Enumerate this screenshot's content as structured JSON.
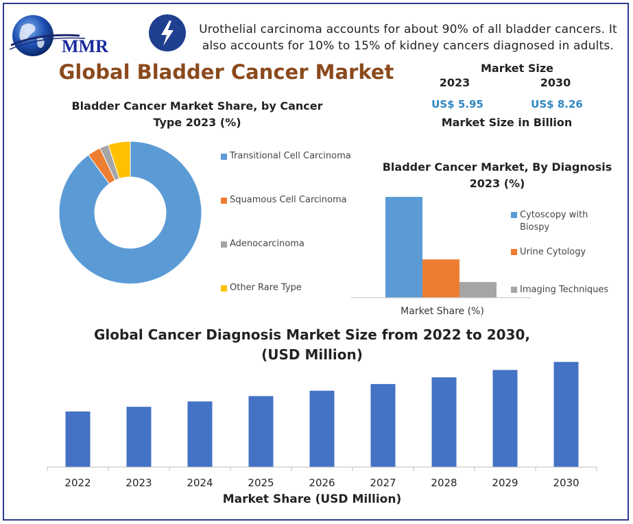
{
  "logo": {
    "text": "MMR"
  },
  "header": {
    "bolt_icon": "lightning-bolt-icon",
    "statement": "Urothelial carcinoma accounts for about 90% of all bladder cancers. It also accounts for 10% to 15% of kidney cancers diagnosed in adults."
  },
  "title": "Global Bladder Cancer Market",
  "market_size": {
    "title": "Market Size",
    "year_a": "2023",
    "year_b": "2030",
    "value_a": "US$ 5.95",
    "value_b": "US$ 8.26",
    "subtitle": "Market Size in Billion"
  },
  "colors": {
    "blue": "#5b9bd5",
    "orange": "#ed7d31",
    "gray": "#a5a5a5",
    "yellow": "#ffc000",
    "dark_blue": "#4472c4",
    "brown": "#8b4a1c"
  },
  "chart_data": [
    {
      "type": "pie",
      "title": "Bladder Cancer Market Share, by Cancer Type 2023 (%)",
      "categories": [
        "Transitional Cell Carcinoma",
        "Squamous Cell Carcinoma",
        "Adenocarcinoma",
        "Other Rare Type"
      ],
      "values": [
        90,
        3,
        2,
        5
      ],
      "colors": [
        "#5b9bd5",
        "#ed7d31",
        "#a5a5a5",
        "#ffc000"
      ],
      "donut": true,
      "legend": "right"
    },
    {
      "type": "bar",
      "title": "Bladder Cancer Market, By Diagnosis 2023 (%)",
      "xlabel": "Market Share (%)",
      "series": [
        {
          "name": "Cytoscopy with Biospy",
          "values": [
            58
          ]
        },
        {
          "name": "Urine Cytology",
          "values": [
            22
          ]
        },
        {
          "name": "Imaging Techniques",
          "values": [
            9
          ]
        }
      ],
      "colors": [
        "#5b9bd5",
        "#ed7d31",
        "#a5a5a5"
      ],
      "ylim": [
        0,
        60
      ],
      "legend": "right"
    },
    {
      "type": "bar",
      "title": "Global Cancer Diagnosis Market Size from 2022 to 2030, (USD Million)",
      "xlabel": "Market Share (USD Million)",
      "categories": [
        "2022",
        "2023",
        "2024",
        "2025",
        "2026",
        "2027",
        "2028",
        "2029",
        "2030"
      ],
      "values": [
        83,
        90,
        98,
        106,
        114,
        124,
        134,
        145,
        157
      ],
      "ylim": [
        0,
        170
      ],
      "color": "#4472c4"
    }
  ]
}
